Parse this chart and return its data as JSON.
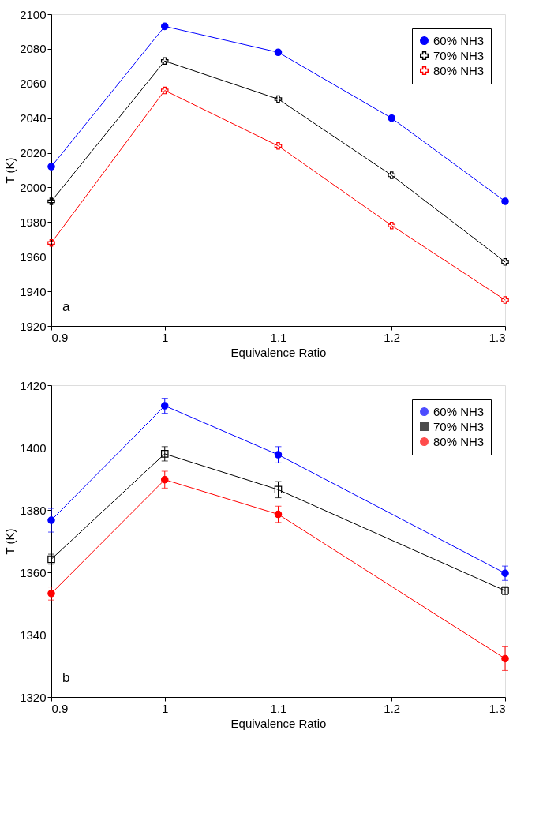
{
  "chart_data": [
    {
      "type": "line",
      "xlabel": "Equivalence Ratio",
      "ylabel": "T (K)",
      "x": [
        0.9,
        1.0,
        1.1,
        1.2,
        1.3
      ],
      "xlim": [
        0.9,
        1.3
      ],
      "xticks": [
        0.9,
        1,
        1.1,
        1.2,
        1.3
      ],
      "ylim": [
        1920,
        2100
      ],
      "yticks": [
        1920,
        1940,
        1960,
        1980,
        2000,
        2020,
        2040,
        2060,
        2080,
        2100
      ],
      "grid": false,
      "legend": "top right",
      "annotations": [
        "a"
      ],
      "series": [
        {
          "name": "60% NH3",
          "color": "#0000ff",
          "marker": "circle",
          "values": [
            2012,
            2093,
            2078,
            2040,
            1992
          ]
        },
        {
          "name": "70% NH3",
          "color": "#000000",
          "marker": "cross",
          "values": [
            1992,
            2073,
            2051,
            2007,
            1957
          ]
        },
        {
          "name": "80% NH3",
          "color": "#ff0000",
          "marker": "cross",
          "values": [
            1968,
            2056,
            2024,
            1978,
            1935
          ]
        }
      ]
    },
    {
      "type": "line",
      "xlabel": "Equivalence Ratio",
      "ylabel": "T (K)",
      "x": [
        0.9,
        1.0,
        1.1,
        1.3
      ],
      "xlim": [
        0.9,
        1.3
      ],
      "xticks": [
        0.9,
        1,
        1.1,
        1.2,
        1.3
      ],
      "ylim": [
        1320,
        1420
      ],
      "yticks": [
        1320,
        1340,
        1360,
        1380,
        1400,
        1420
      ],
      "grid": false,
      "legend": "top right",
      "annotations": [
        "b"
      ],
      "series": [
        {
          "name": "60% NH3",
          "color": "#0000ff",
          "marker": "circle",
          "values": [
            1376.7,
            1413.4,
            1397.7,
            1359.7
          ],
          "errors": [
            3.8,
            2.4,
            2.6,
            2.3
          ]
        },
        {
          "name": "70% NH3",
          "color": "#000000",
          "marker": "square",
          "values": [
            1364.2,
            1398.0,
            1386.5,
            1354.1
          ],
          "errors": [
            1.6,
            2.3,
            2.6,
            1.3
          ]
        },
        {
          "name": "80% NH3",
          "color": "#ff0000",
          "marker": "circle",
          "values": [
            1353.2,
            1389.7,
            1378.6,
            1332.3
          ],
          "errors": [
            2.1,
            2.7,
            2.6,
            3.8
          ]
        }
      ]
    }
  ]
}
